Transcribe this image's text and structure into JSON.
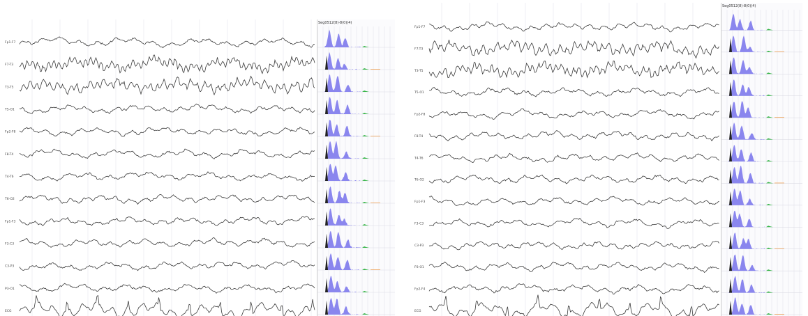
{
  "panels": [
    {
      "id": "left",
      "spectrum_header": "Seg0512(8)-8(0)(4)",
      "channels": [
        {
          "label": "Fp1-F7"
        },
        {
          "label": "F7-T3"
        },
        {
          "label": "T3-T5"
        },
        {
          "label": "T5-O1"
        },
        {
          "label": "Fp2-F8"
        },
        {
          "label": "F8-T4"
        },
        {
          "label": "T4-T6"
        },
        {
          "label": "T6-O2"
        },
        {
          "label": "Fp1-F3"
        },
        {
          "label": "F3-C3"
        },
        {
          "label": "C3-P3"
        },
        {
          "label": "P3-O1"
        },
        {
          "label": "ECG"
        }
      ]
    },
    {
      "id": "right",
      "spectrum_header": "Seg0512(8)-8(0)(4)",
      "channels": [
        {
          "label": "Fp1-F7"
        },
        {
          "label": "F7-T3"
        },
        {
          "label": "T3-T5"
        },
        {
          "label": "T5-O1"
        },
        {
          "label": "Fp2-F8"
        },
        {
          "label": "F8-T4"
        },
        {
          "label": "T4-T6"
        },
        {
          "label": "T6-O2"
        },
        {
          "label": "Fp1-F3"
        },
        {
          "label": "F3-C3"
        },
        {
          "label": "C3-P3"
        },
        {
          "label": "P3-O1"
        },
        {
          "label": "Fp2-F4"
        },
        {
          "label": "ECG"
        }
      ]
    }
  ],
  "colors": {
    "trace": "#3a3a3a",
    "spectrum_fill": "#8a86ee",
    "spectrum_peak": "#222222",
    "spectrum_green": "#39b54a",
    "spectrum_orange": "#f0a050",
    "grid": "#e4e4ec"
  }
}
